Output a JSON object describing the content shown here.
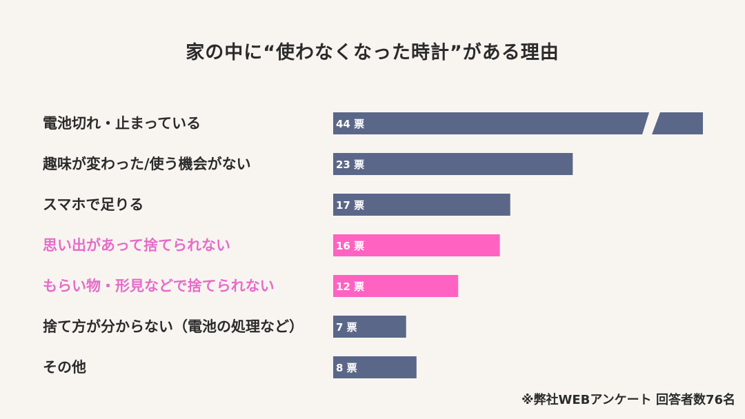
{
  "chart_data": {
    "type": "bar",
    "orientation": "horizontal",
    "title": "家の中に“使わなくなった時計”がある理由",
    "categories": [
      "電池切れ・止まっている",
      "趣味が変わった/使う機会がない",
      "スマホで足りる",
      "思い出があって捨てられない",
      "もらい物・形見などで捨てられない",
      "捨て方が分からない（電池の処理など）",
      "その他"
    ],
    "values": [
      44,
      23,
      17,
      16,
      12,
      7,
      8
    ],
    "value_labels": [
      "44 票",
      "23 票",
      "17 票",
      "16 票",
      "12 票",
      "7 票",
      "8 票"
    ],
    "highlighted": [
      false,
      false,
      false,
      true,
      true,
      false,
      false
    ],
    "axis_break": "first bar truncated with a diagonal break",
    "grid": false,
    "colors": {
      "default": "#5b6788",
      "highlight": "#ff63c1",
      "highlight_text": "#e66cc8",
      "text": "#2b2b2b",
      "background": "#f8f5f1"
    }
  },
  "footnote": "※弊社WEBアンケート 回答者数76名"
}
